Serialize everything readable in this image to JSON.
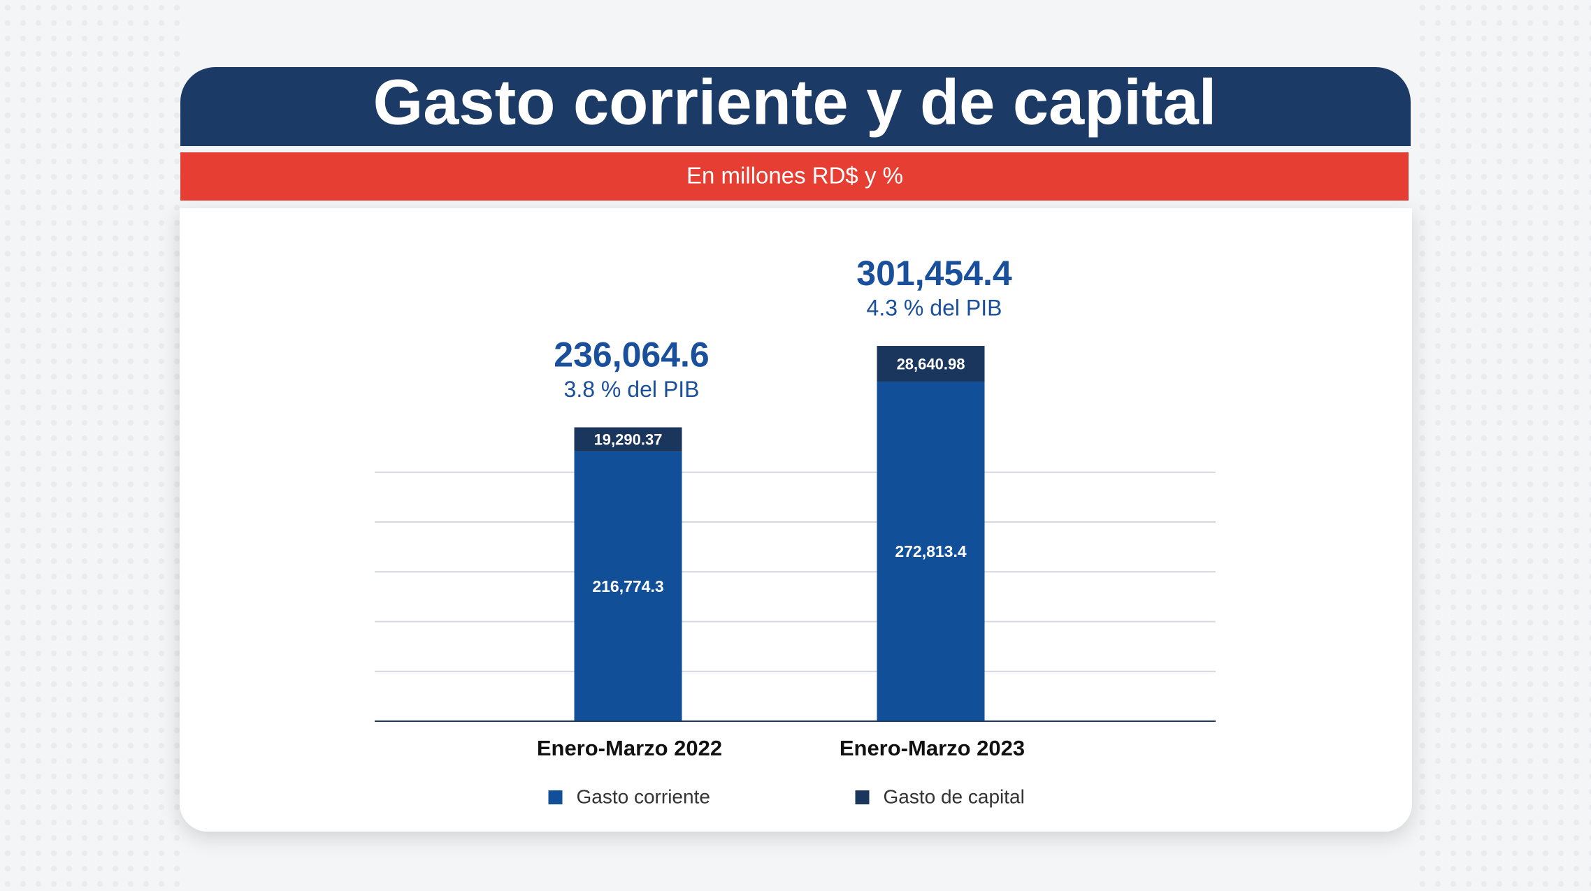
{
  "chart_data": {
    "type": "bar",
    "stacked": true,
    "title": "Gasto corriente y de capital",
    "subtitle": "En millones RD$ y %",
    "categories": [
      "Enero-Marzo 2022",
      "Enero-Marzo 2023"
    ],
    "series": [
      {
        "name": "Gasto corriente",
        "color": "#124f99",
        "values": [
          216774.3,
          272813.4
        ],
        "value_labels": [
          "216,774.3",
          "272,813.4"
        ]
      },
      {
        "name": "Gasto de capital",
        "color": "#1b365d",
        "values": [
          19290.37,
          28640.98
        ],
        "value_labels": [
          "19,290.37",
          "28,640.98"
        ]
      }
    ],
    "annotations": [
      {
        "total": "236,064.6",
        "note": "3.8 % del PIB"
      },
      {
        "total": "301,454.4",
        "note": "4.3 % del PIB"
      }
    ],
    "ylim": [
      0,
      320000
    ],
    "yticks": [
      0,
      40000,
      80000,
      120000,
      160000,
      200000
    ],
    "grid": true,
    "legend": "bottom"
  }
}
